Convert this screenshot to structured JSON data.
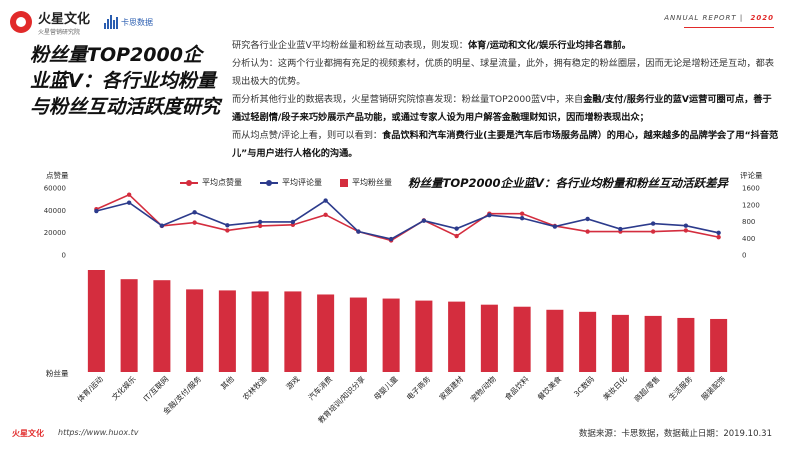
{
  "header": {
    "brand": "火星文化",
    "brand_sub": "火星营销研究院",
    "partner": "卡思数据",
    "report_label": "ANNUAL REPORT",
    "year": "2020"
  },
  "page_title": "粉丝量TOP2000企业蓝V：各行业均粉量与粉丝互动活跃度研究",
  "intro": {
    "p1_a": "研究各行业企业蓝V平均粉丝量和粉丝互动表现，则发现：",
    "p1_b": "体育/运动和文化/娱乐行业均排名靠前。",
    "p2": "分析认为：这两个行业都拥有充足的视频素材，优质的明星、球星流量，此外，拥有稳定的粉丝圈层，因而无论是增粉还是互动，都表现出极大的优势。",
    "p3_a": "而分析其他行业的数据表现，火星营销研究院惊喜发现：粉丝量TOP2000蓝V中，来自",
    "p3_b": "金融/支付/服务行业的蓝V运营可圈可点，善于通过轻剧情/段子来巧妙展示产品功能，或通过专家人设为用户解答金融理财知识，因而增粉表现出众；",
    "p4_a": "而从均点赞/评论上看，则可以看到：",
    "p4_b": "食品饮料和汽车消费行业(主要是汽车后市场服务品牌）的用心，越来越多的品牌学会了用“抖音范儿”与用户进行人格化的沟通。"
  },
  "footer": {
    "brand": "火星文化",
    "url": "https://www.huox.tv",
    "source": "数据来源：卡思数据，数据截止日期：2019.10.31"
  },
  "colors": {
    "like": "#d42d3e",
    "comment": "#2c3b8c",
    "fans": "#d42d3e"
  },
  "chart_data": {
    "type": "bar",
    "title": "粉丝量TOP2000企业蓝V：各行业均粉量和粉丝互动活跃差异",
    "categories": [
      "体育/运动",
      "文化娱乐",
      "IT/互联网",
      "金融/支付/服务",
      "其他",
      "农林牧渔",
      "游戏",
      "汽车消费",
      "教育培训/知识分享",
      "母婴儿童",
      "电子商务",
      "家居建材",
      "宠物/动物",
      "食品饮料",
      "餐饮美食",
      "3C数码",
      "美妆日化",
      "商超/零售",
      "生活服务",
      "服装配饰"
    ],
    "series": [
      {
        "name": "平均点赞量",
        "type": "line",
        "axis": "left",
        "values": [
          41000,
          54000,
          26000,
          29000,
          22000,
          26000,
          27000,
          36000,
          21000,
          13000,
          31000,
          17000,
          37000,
          37000,
          26000,
          21000,
          21000,
          21000,
          22000,
          16000
        ]
      },
      {
        "name": "平均评论量",
        "type": "line",
        "axis": "right",
        "values": [
          1050,
          1250,
          700,
          1020,
          710,
          790,
          790,
          1300,
          560,
          380,
          820,
          630,
          950,
          880,
          680,
          860,
          620,
          750,
          700,
          530
        ]
      },
      {
        "name": "平均粉丝量",
        "type": "bar",
        "axis": "none",
        "values": [
          100,
          91,
          90,
          81,
          80,
          79,
          79,
          76,
          73,
          72,
          70,
          69,
          66,
          64,
          61,
          59,
          56,
          55,
          53,
          52
        ]
      }
    ],
    "left_axis": {
      "label": "点赞量",
      "ticks": [
        "60000",
        "40000",
        "20000",
        "0"
      ],
      "range": [
        0,
        60000
      ]
    },
    "right_axis": {
      "label": "评论量",
      "ticks": [
        "1600",
        "1200",
        "800",
        "400",
        "0"
      ],
      "range": [
        0,
        1600
      ]
    },
    "bar_axis": {
      "label": "粉丝量"
    },
    "legend": [
      "平均点赞量",
      "平均评论量",
      "平均粉丝量"
    ]
  }
}
